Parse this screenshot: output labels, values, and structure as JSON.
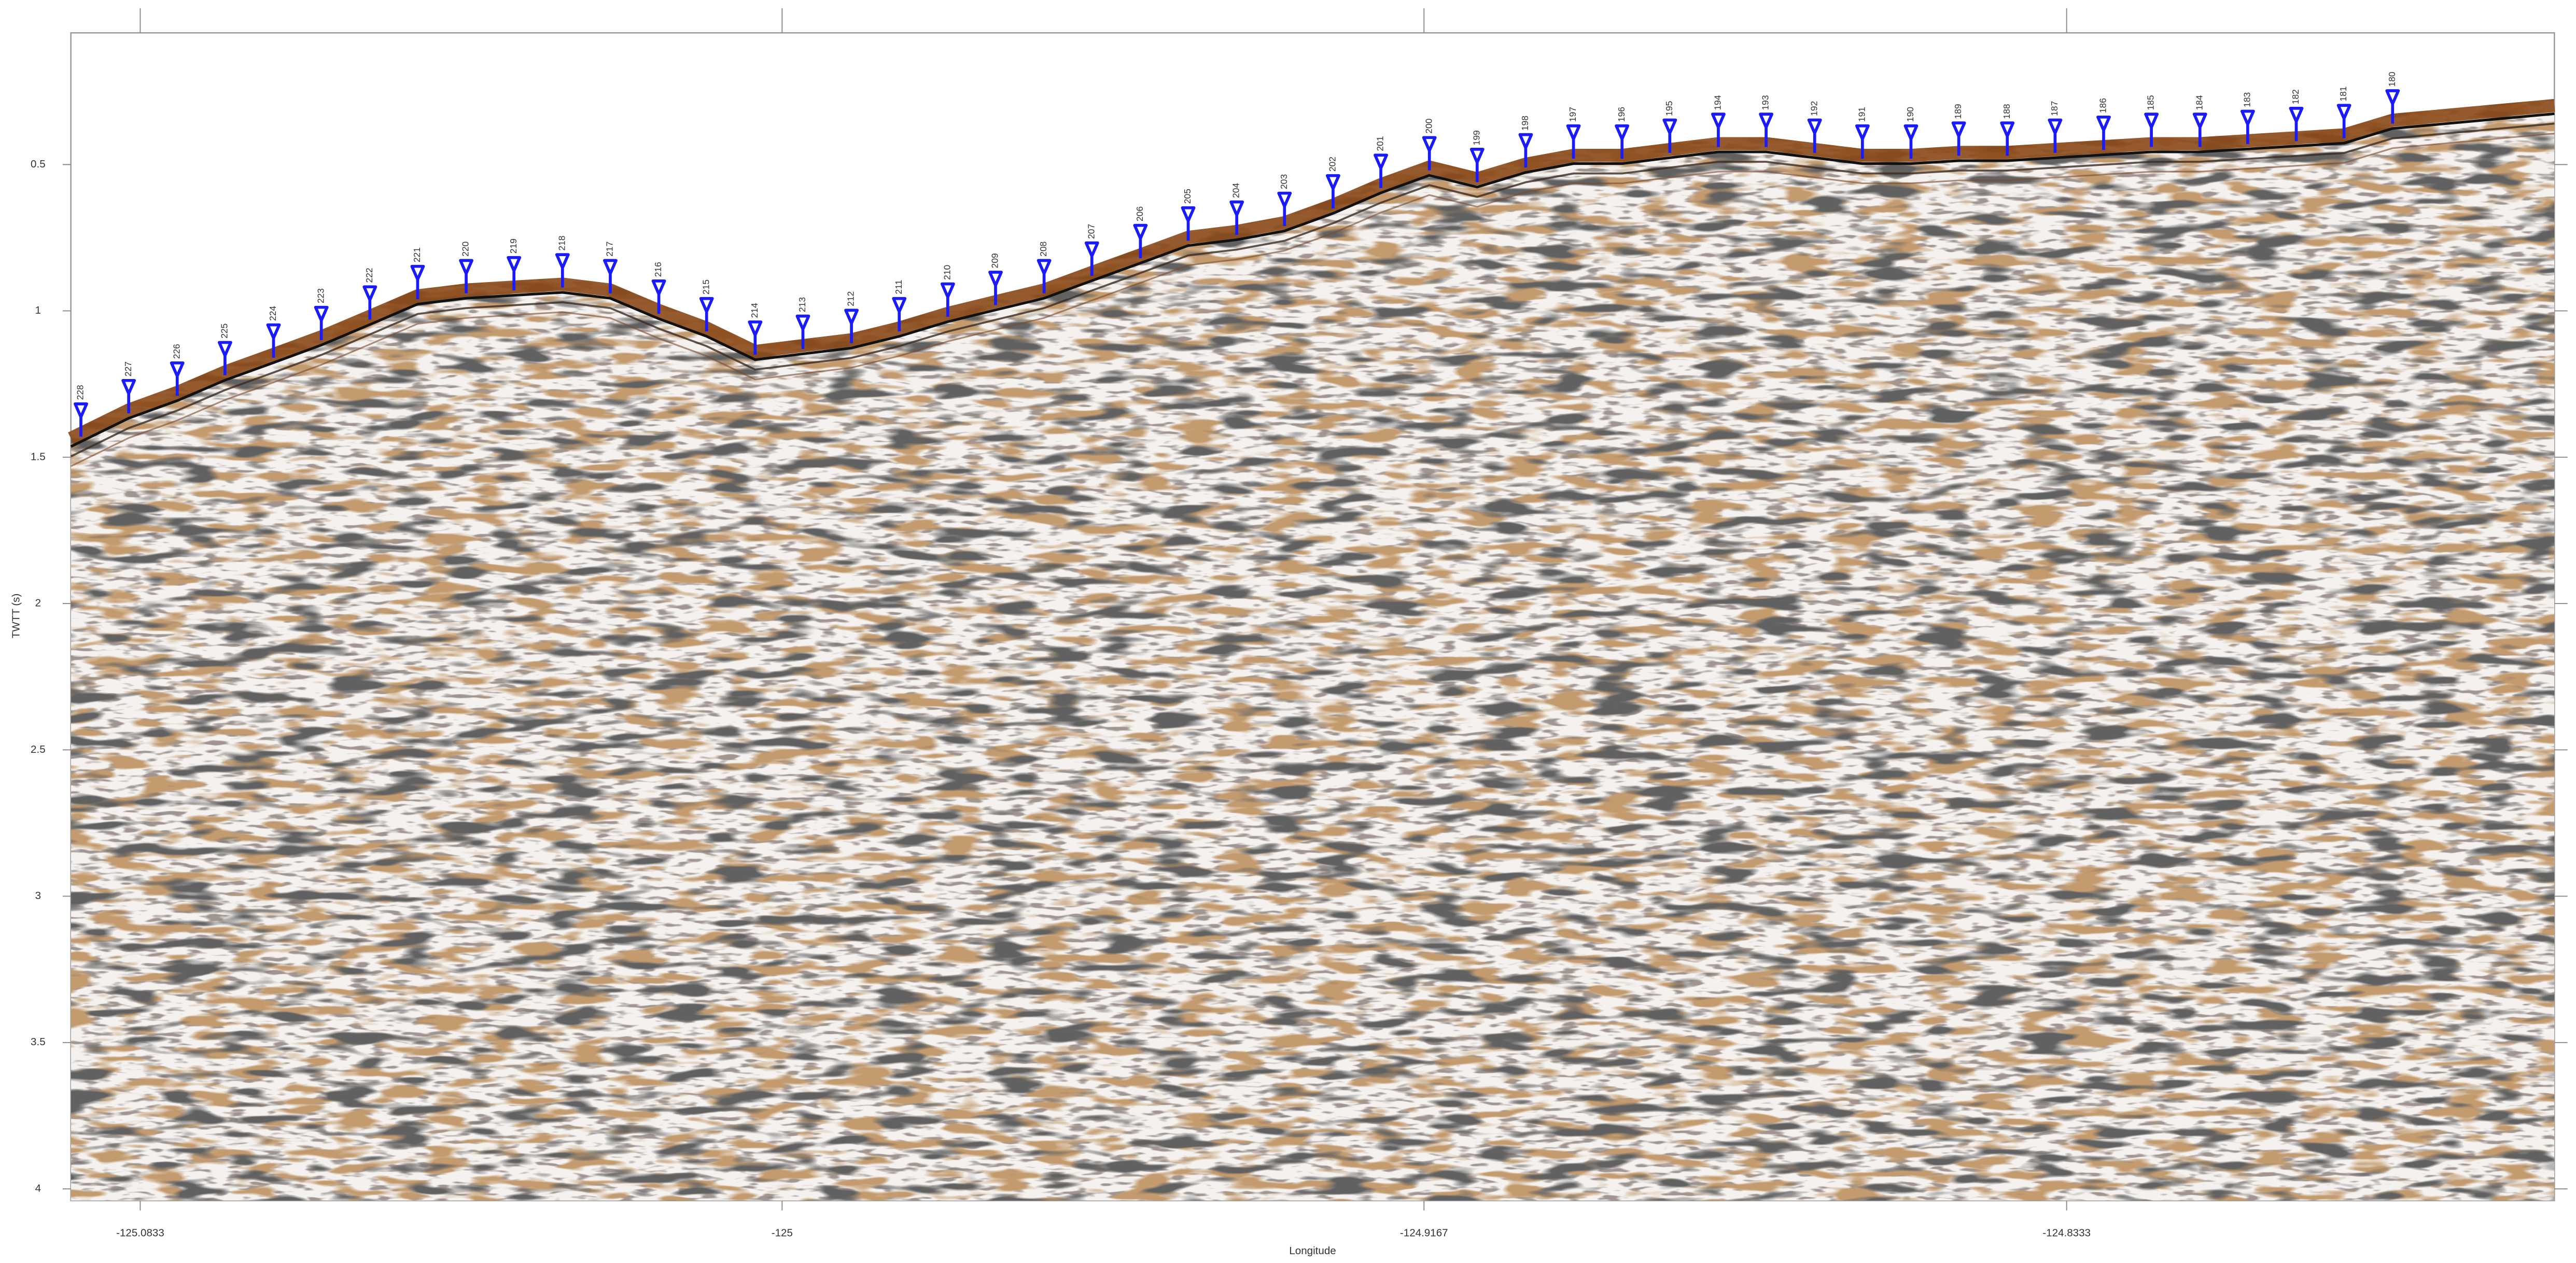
{
  "chart_data": {
    "type": "profile",
    "x_label": "Longitude",
    "y_label": "TWTT (s)",
    "xlim": [
      -125.0923,
      -124.77
    ],
    "ylim": [
      0.05,
      4.04
    ],
    "y_inverted": true,
    "xticks": [
      -125.0833,
      -125,
      -124.9167,
      -124.8333
    ],
    "yticks": [
      0.5,
      1,
      1.5,
      2,
      2.5,
      3,
      3.5,
      4
    ],
    "color": "#1a1aff",
    "labels": [
      "228",
      "227",
      "226",
      "225",
      "224",
      "223",
      "222",
      "221",
      "220",
      "219",
      "218",
      "217",
      "216",
      "215",
      "214",
      "213",
      "212",
      "211",
      "210",
      "209",
      "208",
      "207",
      "206",
      "205",
      "204",
      "203",
      "202",
      "201",
      "200",
      "199",
      "198",
      "197",
      "196",
      "195",
      "194",
      "193",
      "192",
      "191",
      "190",
      "189",
      "188",
      "187",
      "186",
      "185",
      "184",
      "183",
      "182",
      "181",
      "180"
    ],
    "x": [
      -125.091,
      -125.0848,
      -125.0785,
      -125.0723,
      -125.066,
      -125.0598,
      -125.0535,
      -125.0473,
      -125.041,
      -125.0348,
      -125.0285,
      -125.0223,
      -125.016,
      -125.0098,
      -125.0035,
      -124.9973,
      -124.991,
      -124.9848,
      -124.9785,
      -124.9723,
      -124.966,
      -124.9598,
      -124.9535,
      -124.9473,
      -124.941,
      -124.9348,
      -124.9285,
      -124.9223,
      -124.916,
      -124.9098,
      -124.9035,
      -124.8973,
      -124.891,
      -124.8848,
      -124.8785,
      -124.8723,
      -124.866,
      -124.8598,
      -124.8535,
      -124.8473,
      -124.841,
      -124.8348,
      -124.8285,
      -124.8223,
      -124.816,
      -124.8098,
      -124.8035,
      -124.7973,
      -124.791
    ],
    "values": [
      1.43,
      1.35,
      1.29,
      1.22,
      1.16,
      1.1,
      1.03,
      0.96,
      0.94,
      0.93,
      0.92,
      0.94,
      1.01,
      1.07,
      1.15,
      1.13,
      1.11,
      1.07,
      1.02,
      0.98,
      0.94,
      0.88,
      0.82,
      0.76,
      0.74,
      0.71,
      0.65,
      0.58,
      0.52,
      0.56,
      0.51,
      0.48,
      0.48,
      0.46,
      0.44,
      0.44,
      0.46,
      0.48,
      0.48,
      0.47,
      0.47,
      0.46,
      0.45,
      0.44,
      0.44,
      0.43,
      0.42,
      0.41,
      0.36
    ]
  }
}
